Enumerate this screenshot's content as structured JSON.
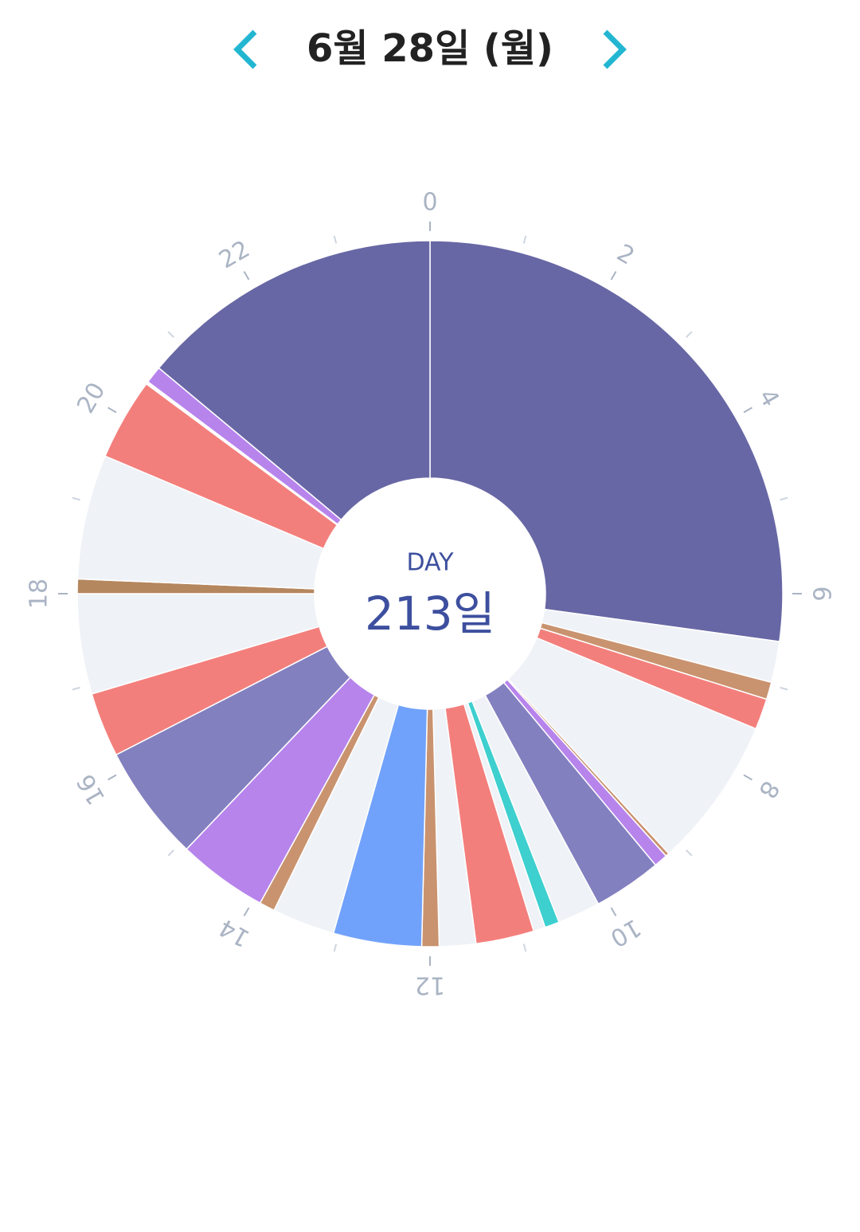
{
  "chart_data": {
    "type": "clock",
    "title": "6월 28일 (월)",
    "center_label": "DAY",
    "center_value": "213일",
    "range": [
      0,
      24
    ],
    "ticks": [
      0,
      2,
      4,
      6,
      8,
      10,
      12,
      14,
      16,
      18,
      20,
      22
    ],
    "minor_ticks": [
      1,
      3,
      5,
      7,
      9,
      11,
      13,
      15,
      17,
      19,
      21,
      23
    ],
    "segments": [
      {
        "start": 0,
        "end": 6.52,
        "color": "#6867a5"
      },
      {
        "start": 6.52,
        "end": 6.97,
        "color": "#eff2f6"
      },
      {
        "start": 6.97,
        "end": 7.16,
        "color": "#c9936f"
      },
      {
        "start": 7.16,
        "end": 7.5,
        "color": "#f37f7c"
      },
      {
        "start": 7.5,
        "end": 9.16,
        "color": "#eff2f6"
      },
      {
        "start": 9.16,
        "end": 9.2,
        "color": "#c9936f"
      },
      {
        "start": 9.2,
        "end": 9.35,
        "color": "#b784ec"
      },
      {
        "start": 9.35,
        "end": 10.1,
        "color": "#8380c0"
      },
      {
        "start": 10.1,
        "end": 10.57,
        "color": "#eff2f6"
      },
      {
        "start": 10.57,
        "end": 10.73,
        "color": "#3ecfcf"
      },
      {
        "start": 10.73,
        "end": 10.86,
        "color": "#eff2f6"
      },
      {
        "start": 10.86,
        "end": 11.5,
        "color": "#f37f7c"
      },
      {
        "start": 11.5,
        "end": 11.9,
        "color": "#eff2f6"
      },
      {
        "start": 11.9,
        "end": 12.09,
        "color": "#c9936f"
      },
      {
        "start": 12.09,
        "end": 13.06,
        "color": "#71a2fb"
      },
      {
        "start": 13.06,
        "end": 13.75,
        "color": "#eff2f6"
      },
      {
        "start": 13.75,
        "end": 13.92,
        "color": "#c9936f"
      },
      {
        "start": 13.92,
        "end": 14.91,
        "color": "#b784ec"
      },
      {
        "start": 14.91,
        "end": 16.19,
        "color": "#8380c0"
      },
      {
        "start": 16.19,
        "end": 16.9,
        "color": "#f37f7c"
      },
      {
        "start": 16.9,
        "end": 18.0,
        "color": "#eff2f6"
      },
      {
        "start": 18.0,
        "end": 18.16,
        "color": "#b5875e"
      },
      {
        "start": 18.16,
        "end": 19.53,
        "color": "#eff2f6"
      },
      {
        "start": 19.53,
        "end": 20.43,
        "color": "#f37f7c"
      },
      {
        "start": 20.46,
        "end": 20.65,
        "color": "#b784ec"
      },
      {
        "start": 20.65,
        "end": 24,
        "color": "#6867a5"
      }
    ]
  }
}
